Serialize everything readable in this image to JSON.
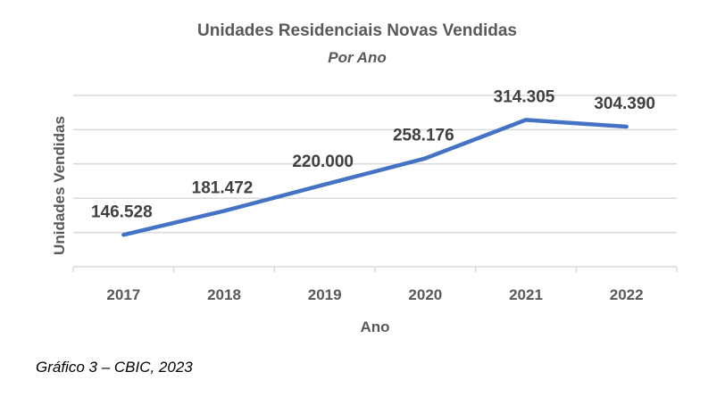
{
  "chart_data": {
    "type": "line",
    "title": "Unidades Residenciais Novas Vendidas",
    "subtitle": "Por Ano",
    "xlabel": "Ano",
    "ylabel": "Unidades Vendidas",
    "categories": [
      "2017",
      "2018",
      "2019",
      "2020",
      "2021",
      "2022"
    ],
    "values": [
      146528,
      181472,
      220000,
      258176,
      314305,
      304390
    ],
    "data_labels": [
      "146.528",
      "181.472",
      "220.000",
      "258.176",
      "314.305",
      "304.390"
    ],
    "ylim": [
      100000,
      350000
    ],
    "ytick_step": 50000,
    "grid": true,
    "legend": "none",
    "line_color": "#4472C4"
  },
  "caption": "Gráfico 3 – CBIC, 2023"
}
